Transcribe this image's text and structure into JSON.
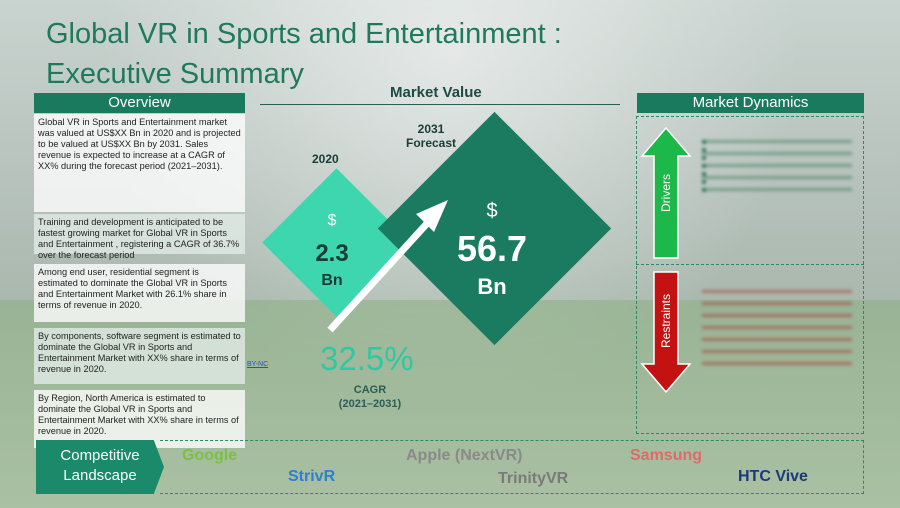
{
  "title": {
    "line1": "Global VR in Sports and Entertainment :",
    "line2": "Executive Summary"
  },
  "overview": {
    "heading": "Overview",
    "items": [
      "Global VR in Sports and Entertainment  market was valued at US$XX Bn in 2020 and is projected to be valued at US$XX Bn by 2031. Sales revenue is expected to increase at a CAGR of XX% during the forecast period (2021–2031).",
      "Training and development is anticipated to be fastest growing market for Global VR in Sports and Entertainment , registering a CAGR of 36.7% over the forecast period",
      "Among end user, residential segment is estimated to dominate the Global VR in Sports and Entertainment  Market with 26.1% share in terms of revenue in 2020.",
      "By components, software segment is estimated to dominate the Global VR in Sports and Entertainment  Market with XX% share in terms of revenue in 2020.",
      "By Region, North America is estimated to dominate the Global VR in Sports and Entertainment  Market with XX% share in terms of revenue in 2020."
    ],
    "license_link": "BY-NC"
  },
  "market_value": {
    "heading": "Market Value",
    "year_2020": "2020",
    "forecast_label_1": "2031",
    "forecast_label_2": "Forecast",
    "small": {
      "currency": "$",
      "amount": "2.3",
      "unit": "Bn"
    },
    "big": {
      "currency": "$",
      "amount": "56.7",
      "unit": "Bn"
    },
    "cagr_value": "32.5%",
    "cagr_label": "CAGR",
    "cagr_period": "(2021–2031)"
  },
  "market_dynamics": {
    "heading": "Market Dynamics",
    "drivers_label": "Drivers",
    "restraints_label": "Restraints"
  },
  "competitive": {
    "label_1": "Competitive",
    "label_2": "Landscape",
    "companies": {
      "google": "Google",
      "apple": "Apple (NextVR)",
      "samsung": "Samsung",
      "strivr": "StrivR",
      "trinity": "TrinityVR",
      "htc": "HTC Vive"
    }
  },
  "colors": {
    "brand_dark": "#1a7a5e",
    "accent_light": "#3dd6ae",
    "drivers_green": "#1db84a",
    "restraints_red": "#c41212"
  }
}
